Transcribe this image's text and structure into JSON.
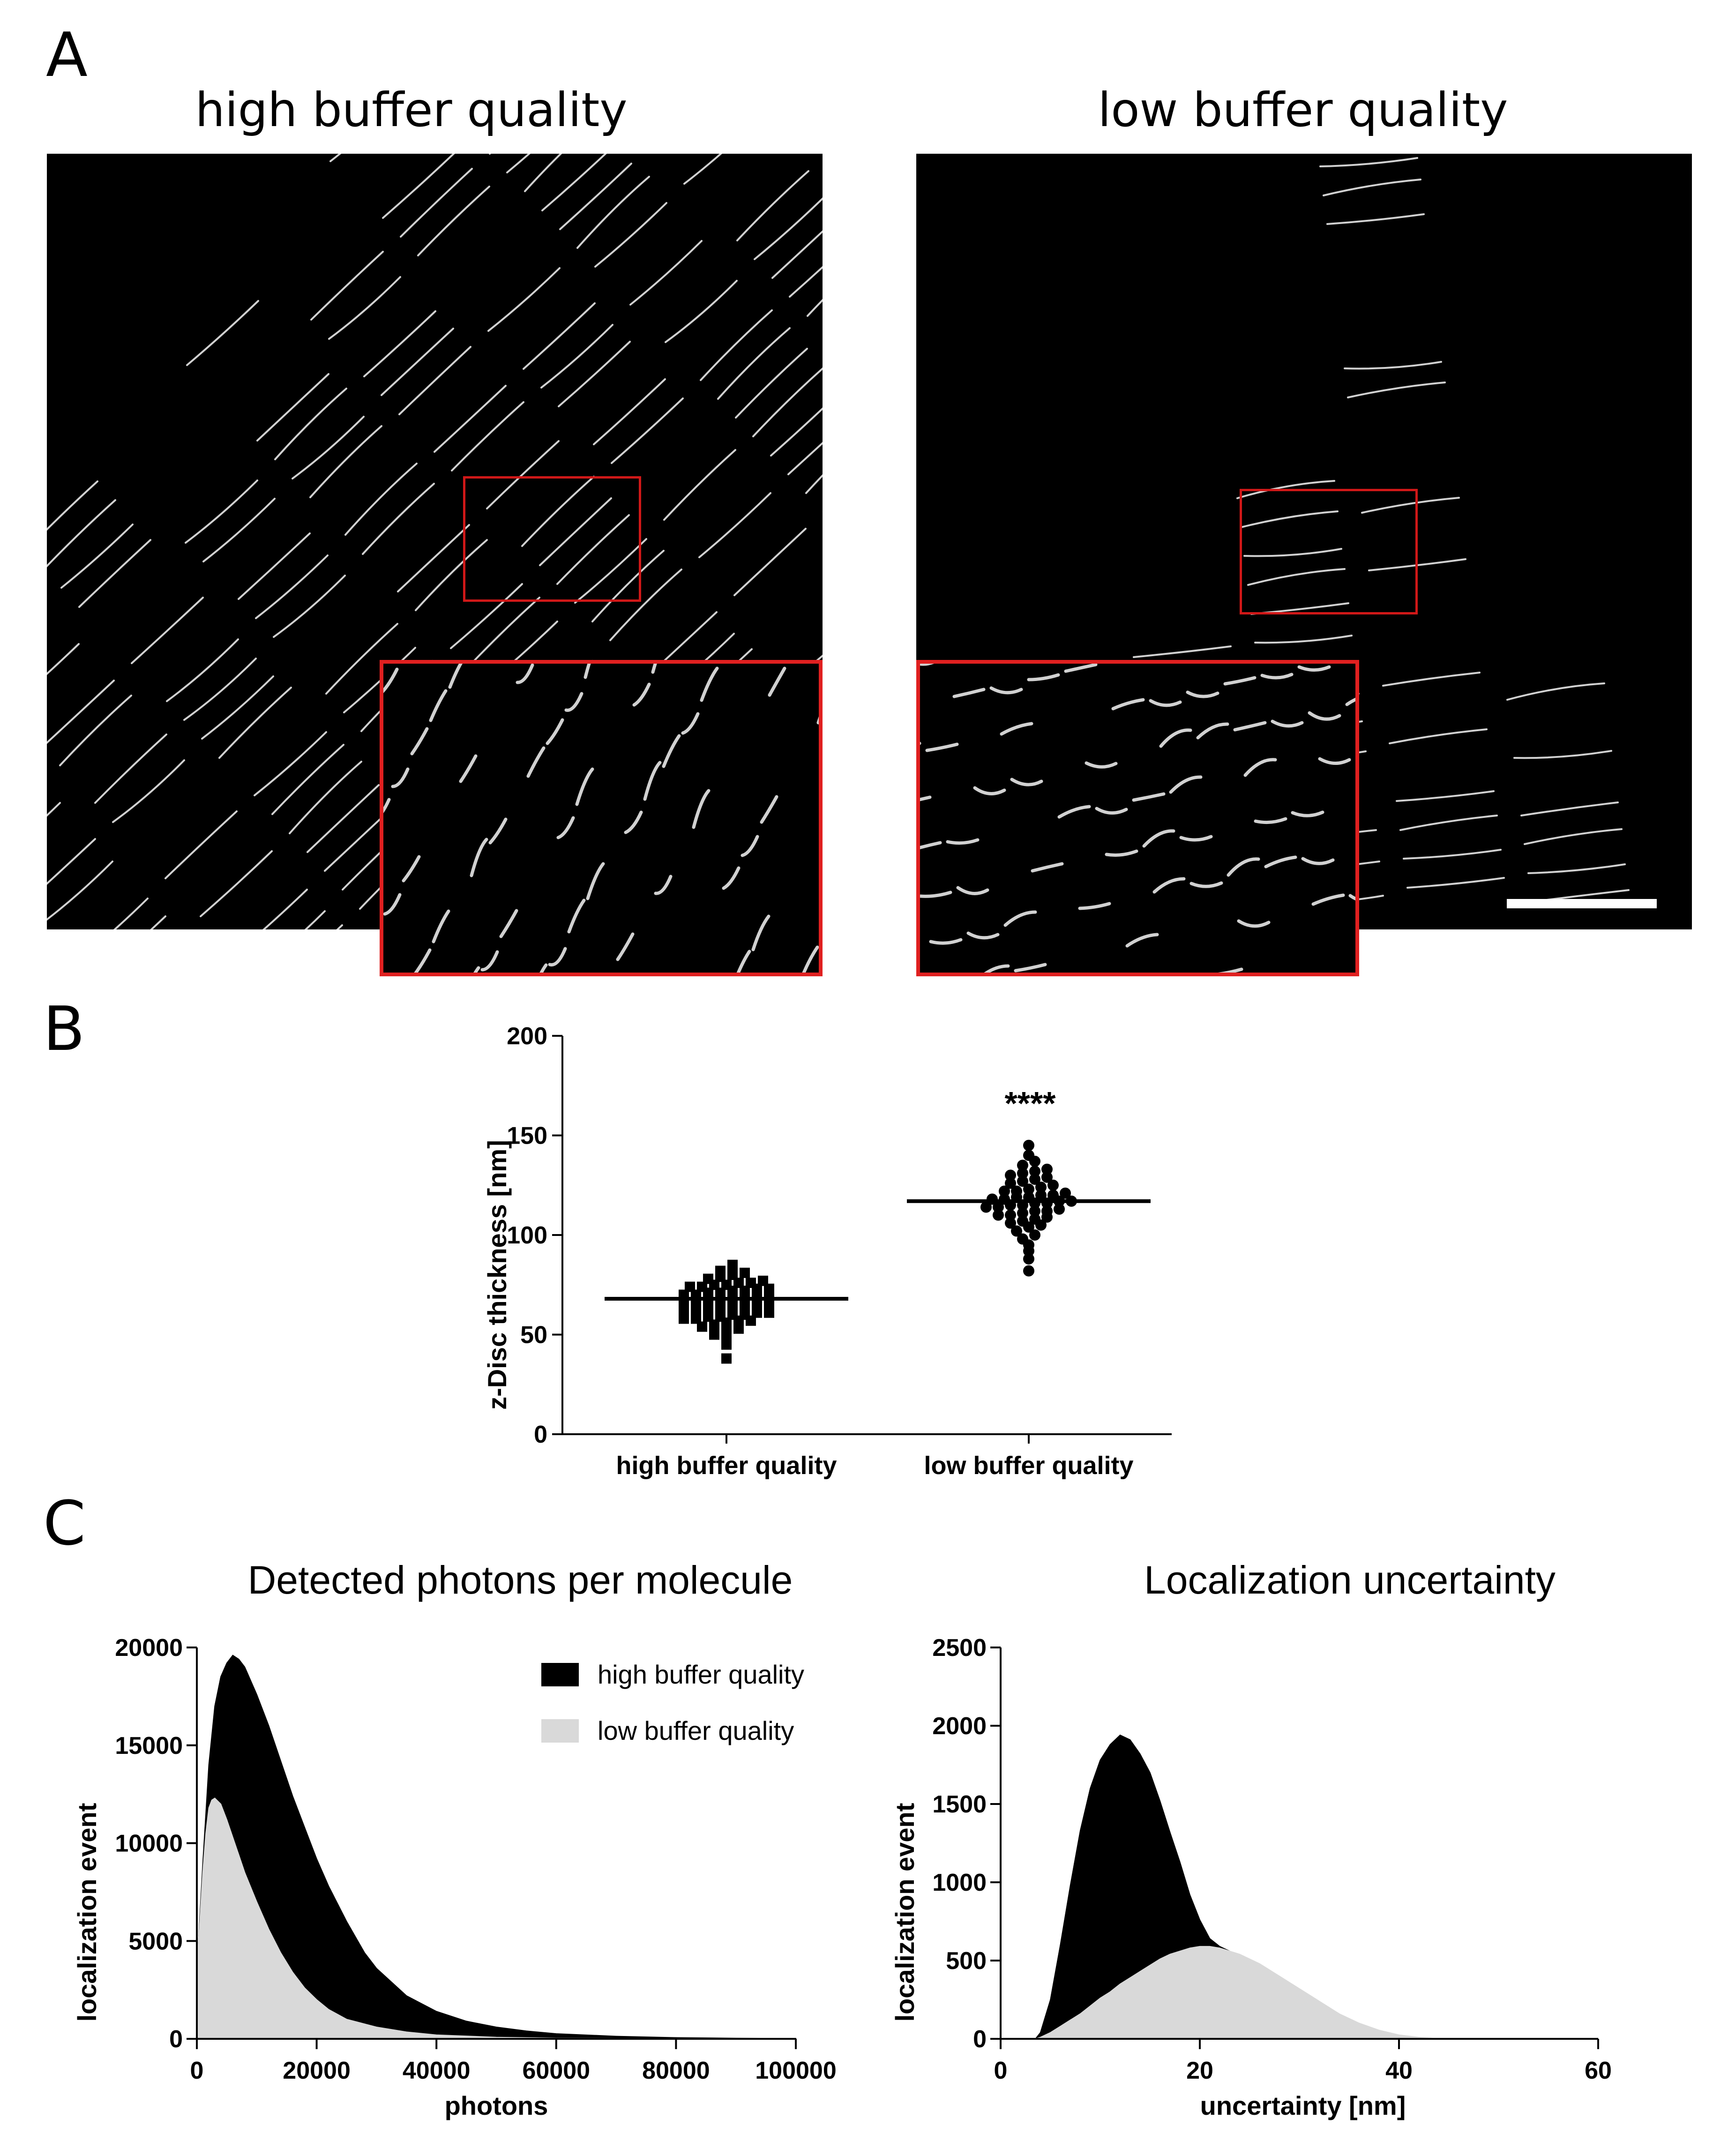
{
  "panels": {
    "a": {
      "letter": "A",
      "left_title": "high buffer quality",
      "right_title": "low buffer quality"
    },
    "b": {
      "letter": "B",
      "significance": "****"
    },
    "c": {
      "letter": "C",
      "left_title": "Detected photons per molecule",
      "right_title": "Localization uncertainty"
    }
  },
  "colors": {
    "high_series": "#000000",
    "low_series": "#d9d9d9",
    "roi_box": "#d01818"
  },
  "chart_data": [
    {
      "type": "scatter",
      "xlabel": "",
      "ylabel": "z-Disc thickness [nm]",
      "ylim": [
        0,
        200
      ],
      "yticks": [
        0,
        50,
        100,
        150,
        200
      ],
      "categories": [
        "high buffer quality",
        "low buffer quality"
      ],
      "series": [
        {
          "name": "high buffer quality",
          "marker": "square",
          "mean": 68,
          "values": [
            38,
            45,
            48,
            50,
            52,
            53,
            54,
            55,
            56,
            57,
            57,
            58,
            58,
            59,
            59,
            60,
            60,
            61,
            61,
            62,
            62,
            63,
            63,
            64,
            64,
            65,
            65,
            66,
            66,
            67,
            67,
            68,
            68,
            69,
            69,
            70,
            70,
            71,
            71,
            72,
            72,
            73,
            73,
            74,
            74,
            75,
            75,
            76,
            76,
            77,
            78,
            79,
            80,
            81,
            82,
            85
          ]
        },
        {
          "name": "low buffer quality",
          "marker": "circle",
          "mean": 117,
          "values": [
            82,
            88,
            92,
            95,
            98,
            100,
            102,
            104,
            105,
            106,
            107,
            108,
            109,
            110,
            110,
            111,
            112,
            112,
            113,
            114,
            114,
            115,
            115,
            116,
            116,
            117,
            117,
            118,
            118,
            119,
            119,
            120,
            120,
            121,
            122,
            122,
            123,
            124,
            125,
            126,
            127,
            128,
            129,
            130,
            131,
            132,
            133,
            135,
            137,
            140,
            145
          ]
        }
      ],
      "annotation": "****"
    },
    {
      "type": "area",
      "title": "Detected photons per molecule",
      "xlabel": "photons",
      "ylabel": "localization event",
      "xlim": [
        0,
        100000
      ],
      "ylim": [
        0,
        20000
      ],
      "xticks": [
        0,
        20000,
        40000,
        60000,
        80000,
        100000
      ],
      "yticks": [
        0,
        5000,
        10000,
        15000,
        20000
      ],
      "legend": "top-right",
      "series": [
        {
          "name": "high buffer quality",
          "x": [
            0,
            1000,
            2000,
            3000,
            4000,
            5000,
            6000,
            7000,
            8000,
            10000,
            12000,
            14000,
            16000,
            18000,
            20000,
            22000,
            25000,
            28000,
            30000,
            35000,
            40000,
            45000,
            50000,
            55000,
            60000,
            70000,
            80000,
            90000,
            100000
          ],
          "y": [
            3500,
            9000,
            14000,
            17000,
            18500,
            19200,
            19600,
            19400,
            19000,
            17600,
            16000,
            14200,
            12400,
            10800,
            9200,
            7800,
            6000,
            4400,
            3600,
            2200,
            1400,
            900,
            600,
            400,
            260,
            130,
            60,
            30,
            15
          ]
        },
        {
          "name": "low buffer quality",
          "x": [
            0,
            500,
            1000,
            1500,
            2000,
            2500,
            3000,
            4000,
            5000,
            6000,
            7000,
            8000,
            10000,
            12000,
            14000,
            16000,
            18000,
            20000,
            22000,
            25000,
            30000,
            35000,
            40000,
            50000,
            60000,
            100000
          ],
          "y": [
            3800,
            6000,
            8500,
            10500,
            11800,
            12200,
            12300,
            12000,
            11200,
            10300,
            9400,
            8500,
            7000,
            5600,
            4400,
            3400,
            2600,
            2000,
            1500,
            1000,
            600,
            350,
            200,
            80,
            30,
            0
          ]
        }
      ]
    },
    {
      "type": "area",
      "title": "Localization uncertainty",
      "xlabel": "uncertainty [nm]",
      "ylabel": "localization event",
      "xlim": [
        0,
        60
      ],
      "ylim": [
        0,
        2500
      ],
      "xticks": [
        0,
        20,
        40,
        60
      ],
      "yticks": [
        0,
        500,
        1000,
        1500,
        2000,
        2500
      ],
      "series": [
        {
          "name": "high buffer quality",
          "x": [
            3.5,
            4,
            5,
            6,
            7,
            8,
            9,
            10,
            11,
            12,
            13,
            14,
            15,
            16,
            17,
            18,
            19,
            20,
            21,
            22,
            23,
            24,
            25,
            26,
            28,
            30,
            32,
            34,
            36,
            38,
            40,
            42,
            44
          ],
          "y": [
            0,
            40,
            250,
            600,
            980,
            1330,
            1600,
            1780,
            1880,
            1940,
            1910,
            1820,
            1700,
            1520,
            1320,
            1130,
            920,
            760,
            640,
            590,
            560,
            520,
            490,
            450,
            370,
            290,
            210,
            140,
            85,
            45,
            20,
            8,
            0
          ]
        },
        {
          "name": "low buffer quality",
          "x": [
            3.5,
            4,
            5,
            6,
            7,
            8,
            9,
            10,
            11,
            12,
            13,
            14,
            15,
            16,
            17,
            18,
            19,
            20,
            21,
            22,
            23,
            24,
            25,
            26,
            28,
            30,
            32,
            34,
            36,
            38,
            40,
            42,
            44
          ],
          "y": [
            0,
            10,
            40,
            80,
            120,
            160,
            210,
            260,
            300,
            350,
            390,
            430,
            470,
            510,
            540,
            560,
            580,
            590,
            590,
            580,
            560,
            540,
            510,
            480,
            400,
            320,
            240,
            160,
            100,
            55,
            25,
            10,
            0
          ]
        }
      ]
    }
  ]
}
